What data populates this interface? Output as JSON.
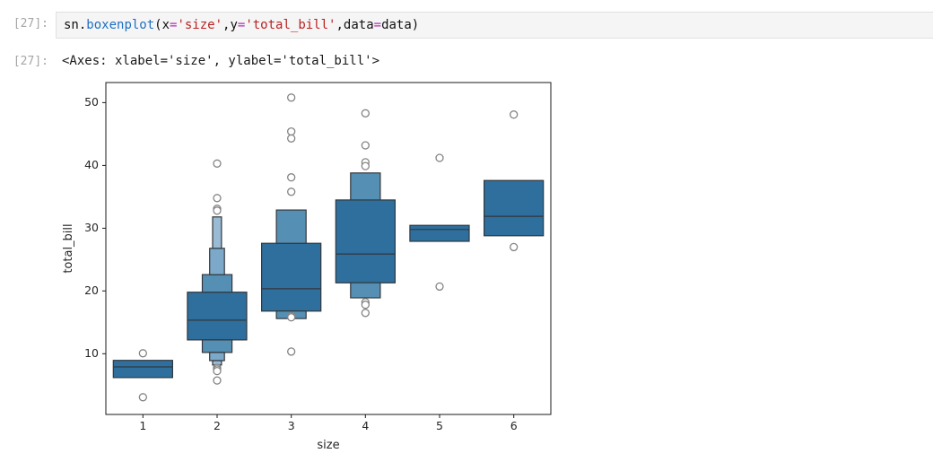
{
  "notebook": {
    "input_prompt": "[27]:",
    "output_prompt": "[27]:",
    "code_tokens": [
      {
        "text": "sn.",
        "type": "plain"
      },
      {
        "text": "boxenplot",
        "type": "function"
      },
      {
        "text": "(x",
        "type": "plain"
      },
      {
        "text": "=",
        "type": "operator"
      },
      {
        "text": "'size'",
        "type": "string"
      },
      {
        "text": ",y",
        "type": "plain"
      },
      {
        "text": "=",
        "type": "operator"
      },
      {
        "text": "'total_bill'",
        "type": "string"
      },
      {
        "text": ",data",
        "type": "plain"
      },
      {
        "text": "=",
        "type": "operator"
      },
      {
        "text": "data)",
        "type": "plain"
      }
    ],
    "syntax_colors": {
      "plain": "#111111",
      "function": "#1d6fc4",
      "operator": "#b52fb5",
      "string": "#ba2121"
    },
    "output_text": "<Axes: xlabel='size', ylabel='total_bill'>"
  },
  "chart_data": {
    "type": "boxen",
    "title": "",
    "xlabel": "size",
    "ylabel": "total_bill",
    "x_tick_labels": [
      "1",
      "2",
      "3",
      "4",
      "5",
      "6"
    ],
    "y_ticks": [
      10,
      20,
      30,
      40,
      50
    ],
    "xlim": [
      -0.5,
      5.5
    ],
    "ylim": [
      0.33,
      53.2
    ],
    "grid": false,
    "legend": false,
    "edge_color": "#33373b",
    "outlier_stroke": "#848484",
    "level_colors": {
      "1": "#2e6f9e",
      "0.5": "#5590b4",
      "0.25": "#7ca9c9",
      "0.15": "#99bbd3"
    },
    "groups": [
      {
        "category": "1",
        "median": 7.9,
        "boxes": [
          {
            "lo": 6.2,
            "hi": 8.95,
            "w": 1
          }
        ],
        "outliers": [
          10.07,
          3.07
        ]
      },
      {
        "category": "2",
        "median": 15.35,
        "boxes": [
          {
            "lo": 12.2,
            "hi": 19.8,
            "w": 1
          },
          {
            "lo": 19.8,
            "hi": 22.6,
            "w": 0.5
          },
          {
            "lo": 10.2,
            "hi": 12.2,
            "w": 0.5
          },
          {
            "lo": 22.6,
            "hi": 26.8,
            "w": 0.25
          },
          {
            "lo": 8.9,
            "hi": 10.2,
            "w": 0.25
          },
          {
            "lo": 26.8,
            "hi": 31.8,
            "w": 0.15
          },
          {
            "lo": 8.2,
            "hi": 8.9,
            "w": 0.15
          }
        ],
        "outliers": [
          40.3,
          34.8,
          33.1,
          32.8,
          7.74,
          7.51,
          7.25,
          5.75
        ]
      },
      {
        "category": "3",
        "median": 20.35,
        "boxes": [
          {
            "lo": 16.8,
            "hi": 27.6,
            "w": 1
          },
          {
            "lo": 27.6,
            "hi": 32.9,
            "w": 0.5
          },
          {
            "lo": 15.6,
            "hi": 16.8,
            "w": 0.5
          }
        ],
        "outliers": [
          50.8,
          45.4,
          44.3,
          38.1,
          35.8,
          16.0,
          15.8,
          10.35
        ]
      },
      {
        "category": "4",
        "median": 25.9,
        "boxes": [
          {
            "lo": 21.3,
            "hi": 34.5,
            "w": 1
          },
          {
            "lo": 34.5,
            "hi": 38.8,
            "w": 0.5
          },
          {
            "lo": 18.9,
            "hi": 21.3,
            "w": 0.5
          }
        ],
        "outliers": [
          48.3,
          43.2,
          40.5,
          39.9,
          18.2,
          17.8,
          16.5
        ]
      },
      {
        "category": "5",
        "median": 29.8,
        "boxes": [
          {
            "lo": 27.9,
            "hi": 30.45,
            "w": 1
          }
        ],
        "outliers": [
          41.2,
          20.7
        ]
      },
      {
        "category": "6",
        "median": 31.9,
        "boxes": [
          {
            "lo": 28.8,
            "hi": 37.6,
            "w": 1
          }
        ],
        "outliers": [
          48.1,
          27.0
        ]
      }
    ]
  }
}
